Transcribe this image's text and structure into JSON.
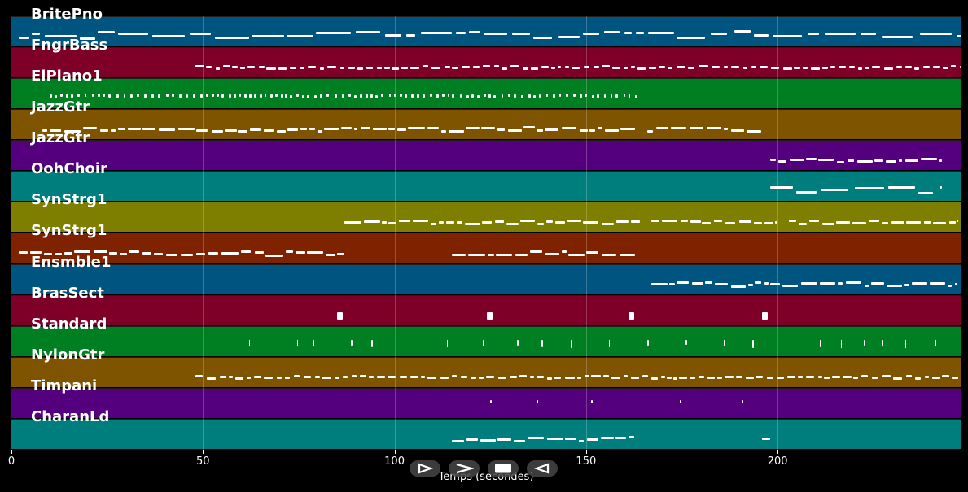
{
  "axis": {
    "xlabel": "Temps (secondes)",
    "ticks": [
      0,
      50,
      100,
      150,
      200
    ],
    "xlim": [
      0,
      248
    ]
  },
  "tracks": [
    {
      "label": "BritePno",
      "color": "#005480"
    },
    {
      "label": "FngrBass",
      "color": "#7e0028"
    },
    {
      "label": "ElPiano1",
      "color": "#007e22"
    },
    {
      "label": "JazzGtr",
      "color": "#7e5400"
    },
    {
      "label": "JazzGtr",
      "color": "#54007e"
    },
    {
      "label": "OohChoir",
      "color": "#007e7e"
    },
    {
      "label": "SynStrg1",
      "color": "#7e7e00"
    },
    {
      "label": "SynStrg1",
      "color": "#7e2200"
    },
    {
      "label": "Ensmble1",
      "color": "#005480"
    },
    {
      "label": "BrasSect",
      "color": "#7e0028"
    },
    {
      "label": "Standard",
      "color": "#007e22"
    },
    {
      "label": "NylonGtr",
      "color": "#7e5400"
    },
    {
      "label": "Timpani",
      "color": "#54007e"
    },
    {
      "label": "CharanLd",
      "color": "#007e7e"
    }
  ],
  "controls": [
    {
      "name": "play-forward-button",
      "icon": "play-icon"
    },
    {
      "name": "next-button",
      "icon": "chevron-right-icon"
    },
    {
      "name": "stop-button",
      "icon": "stop-icon"
    },
    {
      "name": "rewind-button",
      "icon": "play-backward-icon"
    }
  ]
}
